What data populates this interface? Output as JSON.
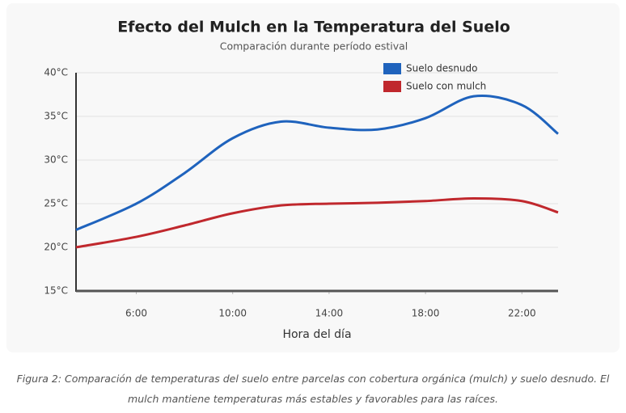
{
  "chart_data": {
    "type": "line",
    "title": "Efecto del Mulch en la Temperatura del Suelo",
    "subtitle": "Comparación durante período estival",
    "x_label": "Hora del día",
    "x": [
      3.5,
      6,
      8,
      10,
      12,
      14,
      16,
      18,
      20,
      22,
      23.5
    ],
    "series": [
      {
        "name": "Suelo desnudo",
        "color": "#1f63bd",
        "values": [
          22,
          25,
          28.5,
          32.5,
          34.4,
          33.7,
          33.5,
          34.8,
          37.3,
          36.3,
          33
        ]
      },
      {
        "name": "Suelo con mulch",
        "color": "#c0282d",
        "values": [
          20,
          21.2,
          22.5,
          23.9,
          24.8,
          25,
          25.1,
          25.3,
          25.6,
          25.3,
          24
        ]
      }
    ],
    "xlim": [
      3.5,
      23.5
    ],
    "xticks": [
      {
        "value": 6,
        "label": "6:00"
      },
      {
        "value": 10,
        "label": "10:00"
      },
      {
        "value": 14,
        "label": "14:00"
      },
      {
        "value": 18,
        "label": "18:00"
      },
      {
        "value": 22,
        "label": "22:00"
      }
    ],
    "ylim": [
      15,
      40
    ],
    "yticks": [
      {
        "value": 15,
        "label": "15°C"
      },
      {
        "value": 20,
        "label": "20°C"
      },
      {
        "value": 25,
        "label": "25°C"
      },
      {
        "value": 30,
        "label": "30°C"
      },
      {
        "value": 35,
        "label": "35°C"
      },
      {
        "value": 40,
        "label": "40°C"
      }
    ],
    "grid": true,
    "legend": "top-right",
    "caption": "Figura 2: Comparación de temperaturas del suelo entre parcelas con cobertura orgánica (mulch) y suelo desnudo. El mulch mantiene temperaturas más estables y favorables para las raíces."
  }
}
